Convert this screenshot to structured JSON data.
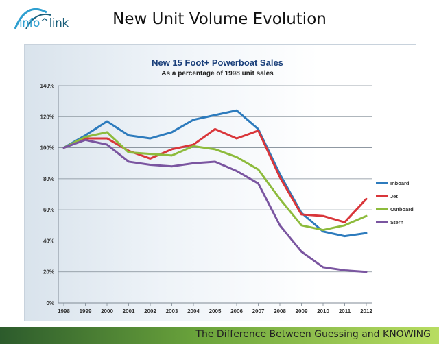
{
  "header": {
    "logo_text_a": "info",
    "logo_text_b": "link",
    "title": "New Unit Volume Evolution"
  },
  "footer": {
    "tagline": "The Difference Between Guessing and KNOWING"
  },
  "colors": {
    "inboard": "#2d7bbd",
    "jet": "#d9363a",
    "outboard": "#8dbb3c",
    "stern": "#7a55a0"
  },
  "chart_data": {
    "type": "line",
    "title": "New 15 Foot+ Powerboat Sales",
    "subtitle": "As a percentage of 1998 unit sales",
    "categories": [
      "1998",
      "1999",
      "2000",
      "2001",
      "2002",
      "2003",
      "2004",
      "2005",
      "2006",
      "2007",
      "2008",
      "2009",
      "2010",
      "2011",
      "2012"
    ],
    "ylim": [
      0,
      140
    ],
    "yticks": [
      "0%",
      "20%",
      "40%",
      "60%",
      "80%",
      "100%",
      "120%",
      "140%"
    ],
    "grid": true,
    "legend_position": "right",
    "series": [
      {
        "name": "Inboard",
        "color": "#2d7bbd",
        "values": [
          100,
          108,
          117,
          108,
          106,
          110,
          118,
          121,
          124,
          112,
          83,
          58,
          46,
          43,
          45
        ]
      },
      {
        "name": "Jet",
        "color": "#d9363a",
        "values": [
          100,
          106,
          106,
          98,
          93,
          99,
          102,
          112,
          106,
          111,
          81,
          57,
          56,
          52,
          67
        ]
      },
      {
        "name": "Outboard",
        "color": "#8dbb3c",
        "values": [
          100,
          107,
          110,
          97,
          96,
          95,
          101,
          99,
          94,
          86,
          67,
          50,
          47,
          50,
          56
        ]
      },
      {
        "name": "Stern",
        "color": "#7a55a0",
        "values": [
          100,
          105,
          102,
          91,
          89,
          88,
          90,
          91,
          85,
          77,
          50,
          33,
          23,
          21,
          20
        ]
      }
    ]
  }
}
